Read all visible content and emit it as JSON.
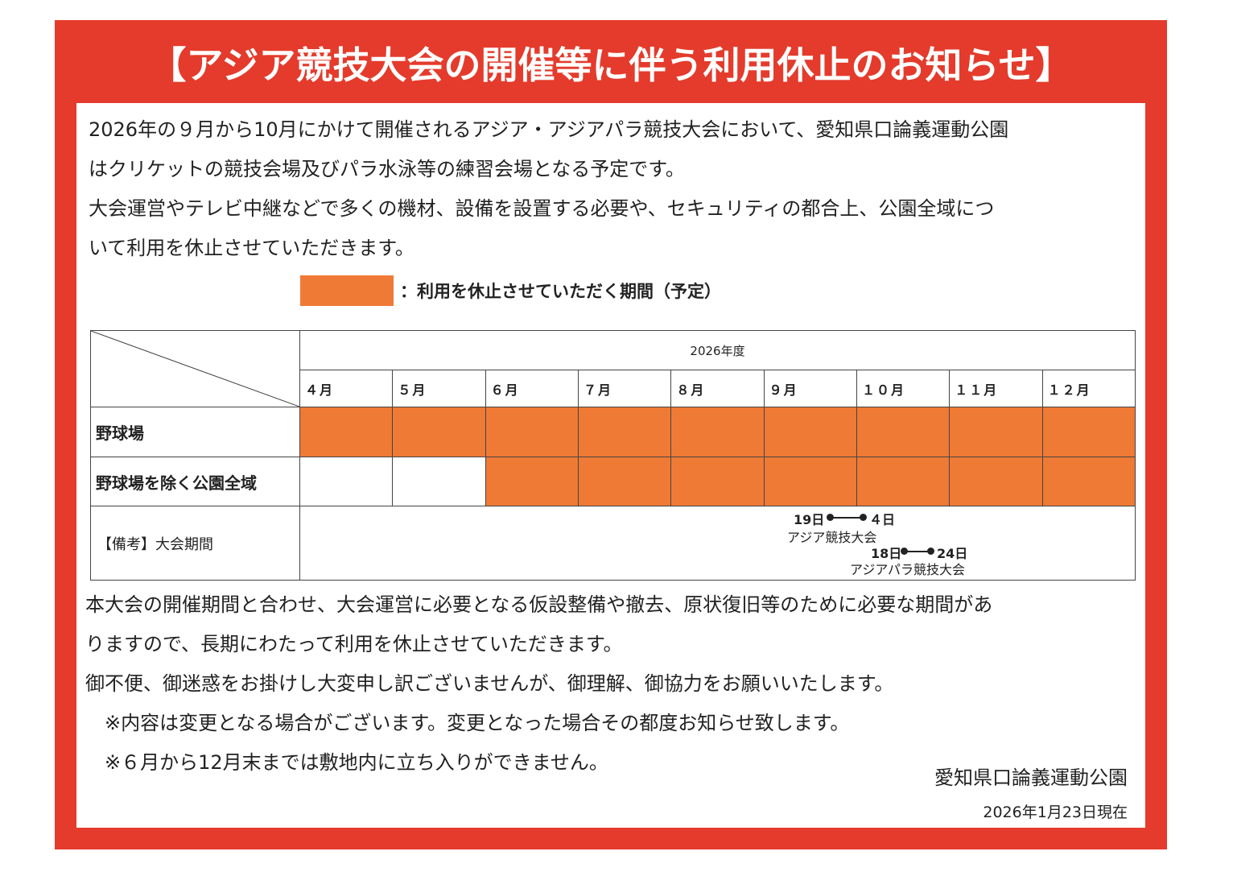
{
  "colors": {
    "frame": "#e43b2c",
    "closure": "#ef7a35"
  },
  "title": "【アジア競技大会の開催等に伴う利用休止のお知らせ】",
  "intro_lines": [
    "2026年の９月から10月にかけて開催されるアジア・アジアパラ競技大会において、愛知県口論義運動公園",
    "はクリケットの競技会場及びパラ水泳等の練習会場となる予定です。",
    "大会運営やテレビ中継などで多くの機材、設備を設置する必要や、セキュリティの都合上、公園全域につ",
    "いて利用を休止させていただきます。"
  ],
  "legend": "：利用を休止させていただく期間（予定）",
  "table": {
    "year": "2026年度",
    "months": [
      "４月",
      "５月",
      "６月",
      "７月",
      "８月",
      "９月",
      "１０月",
      "１１月",
      "１２月"
    ],
    "rows": [
      {
        "label": "野球場",
        "closed": [
          true,
          true,
          true,
          true,
          true,
          true,
          true,
          true,
          true
        ]
      },
      {
        "label": "野球場を除く公園全域",
        "closed": [
          false,
          false,
          true,
          true,
          true,
          true,
          true,
          true,
          true
        ]
      }
    ],
    "remarks_label": "【備考】大会期間",
    "events": [
      {
        "start": "19日",
        "end": "４日",
        "name": "アジア競技大会"
      },
      {
        "start": "18日",
        "end": "24日",
        "name": "アジアパラ競技大会"
      }
    ]
  },
  "outro_lines": [
    "本大会の開催期間と合わせ、大会運営に必要となる仮設整備や撤去、原状復旧等のために必要な期間があ",
    "りますので、長期にわたって利用を休止させていただきます。",
    "御不便、御迷惑をお掛けし大変申し訳ございませんが、御理解、御協力をお願いいたします。",
    "　※内容は変更となる場合がございます。変更となった場合その都度お知らせ致します。",
    "　※６月から12月末までは敷地内に立ち入りができません。"
  ],
  "signature": "愛知県口論義運動公園",
  "as_of": "2026年1月23日現在"
}
